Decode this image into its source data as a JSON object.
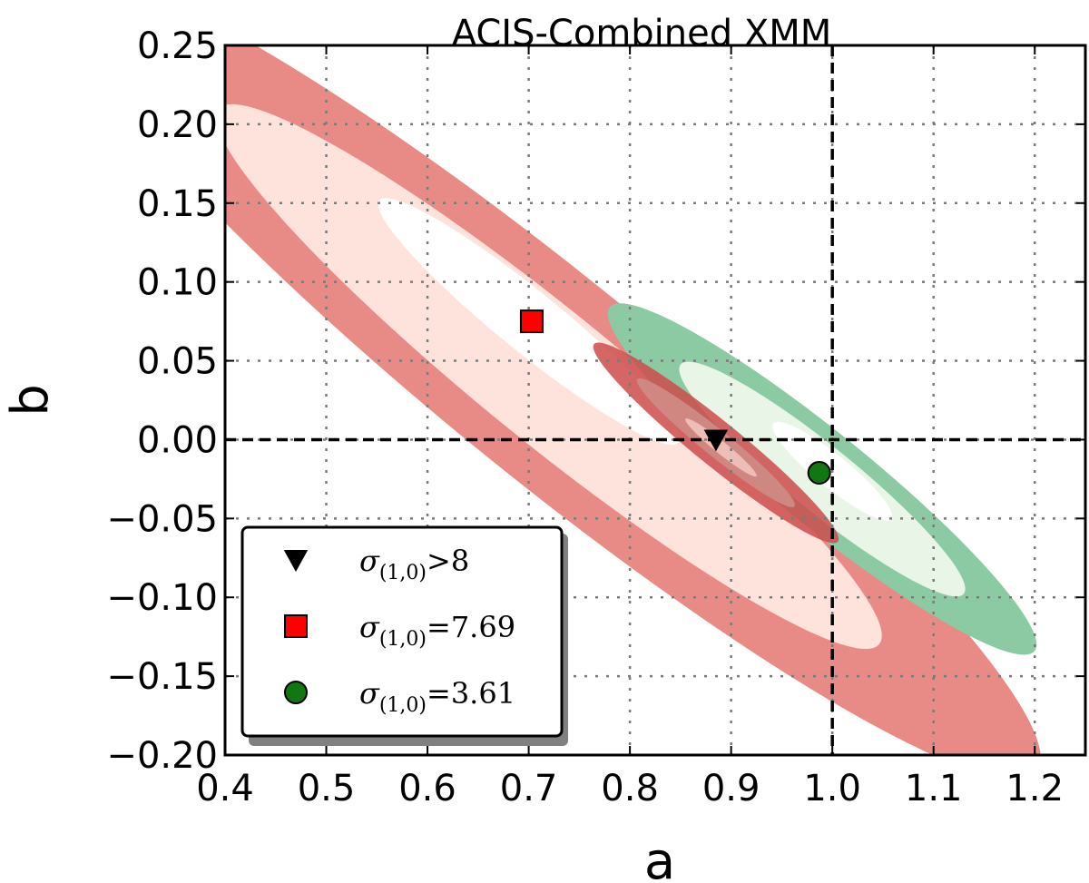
{
  "chart_data": {
    "type": "scatter",
    "title": "ACIS-Combined XMM",
    "xlabel": "a",
    "ylabel": "b",
    "xlim": [
      0.4,
      1.25
    ],
    "ylim": [
      -0.2,
      0.25
    ],
    "xticks": [
      0.4,
      0.5,
      0.6,
      0.7,
      0.8,
      0.9,
      1.0,
      1.1,
      1.2
    ],
    "xtick_labels": [
      "0.4",
      "0.5",
      "0.6",
      "0.7",
      "0.8",
      "0.9",
      "1.0",
      "1.1",
      "1.2"
    ],
    "yticks": [
      0.25,
      0.2,
      0.15,
      0.1,
      0.05,
      0.0,
      -0.05,
      -0.1,
      -0.15,
      -0.2
    ],
    "ytick_labels": [
      "0.25",
      "0.20",
      "0.15",
      "0.10",
      "0.05",
      "0.00",
      "−0.05",
      "−0.10",
      "−0.15",
      "−0.20"
    ],
    "grid": true,
    "reference_lines": {
      "x": 1.0,
      "y": 0.0
    },
    "legend_position": "lower-left",
    "points": [
      {
        "name": "sigma > 8",
        "marker": "triangle-down",
        "color": "#000000",
        "x": 0.885,
        "y": 0.0,
        "legend_symbol": "σ",
        "legend_subscript": "(1,0)",
        "legend_value": ">8"
      },
      {
        "name": "sigma = 7.69",
        "marker": "square",
        "color": "#ff0000",
        "x": 0.703,
        "y": 0.075,
        "legend_symbol": "σ",
        "legend_subscript": "(1,0)",
        "legend_value": "=7.69"
      },
      {
        "name": "sigma = 3.61",
        "marker": "circle",
        "color": "#117711",
        "x": 0.987,
        "y": -0.021,
        "legend_symbol": "σ",
        "legend_subscript": "(1,0)",
        "legend_value": "=3.61"
      }
    ],
    "contours": [
      {
        "name": "red-outer",
        "color": "#e88a86",
        "cx": 0.72,
        "cy": 0.04,
        "rx": 0.1,
        "ry": 0.62,
        "angle_deg": -51
      },
      {
        "name": "red-middle",
        "color": "#fde3dc",
        "cx": 0.72,
        "cy": 0.04,
        "rx": 0.065,
        "ry": 0.42,
        "angle_deg": -51
      },
      {
        "name": "red-inner",
        "color": "#ffffff",
        "cx": 0.7,
        "cy": 0.075,
        "rx": 0.03,
        "ry": 0.19,
        "angle_deg": -51
      },
      {
        "name": "green-outer",
        "color": "#8ccaa4",
        "cx": 0.99,
        "cy": -0.025,
        "rx": 0.046,
        "ry": 0.27,
        "angle_deg": -51
      },
      {
        "name": "green-middle",
        "color": "#e9f5e7",
        "cx": 0.99,
        "cy": -0.025,
        "rx": 0.032,
        "ry": 0.18,
        "angle_deg": -51
      },
      {
        "name": "green-inner",
        "color": "#ffffff",
        "cx": 1.0,
        "cy": -0.02,
        "rx": 0.016,
        "ry": 0.075,
        "angle_deg": -51
      },
      {
        "name": "dark-outer",
        "color": "#cc4b4b",
        "alpha": 0.85,
        "cx": 0.885,
        "cy": -0.002,
        "rx": 0.022,
        "ry": 0.155,
        "angle_deg": -51
      },
      {
        "name": "dark-middle",
        "color": "#cf8c86",
        "alpha": 0.9,
        "cx": 0.885,
        "cy": -0.002,
        "rx": 0.013,
        "ry": 0.1,
        "angle_deg": -51
      },
      {
        "name": "dark-inner",
        "color": "#f3c3bd",
        "alpha": 0.9,
        "cx": 0.89,
        "cy": -0.005,
        "rx": 0.006,
        "ry": 0.045,
        "angle_deg": -51
      }
    ]
  }
}
